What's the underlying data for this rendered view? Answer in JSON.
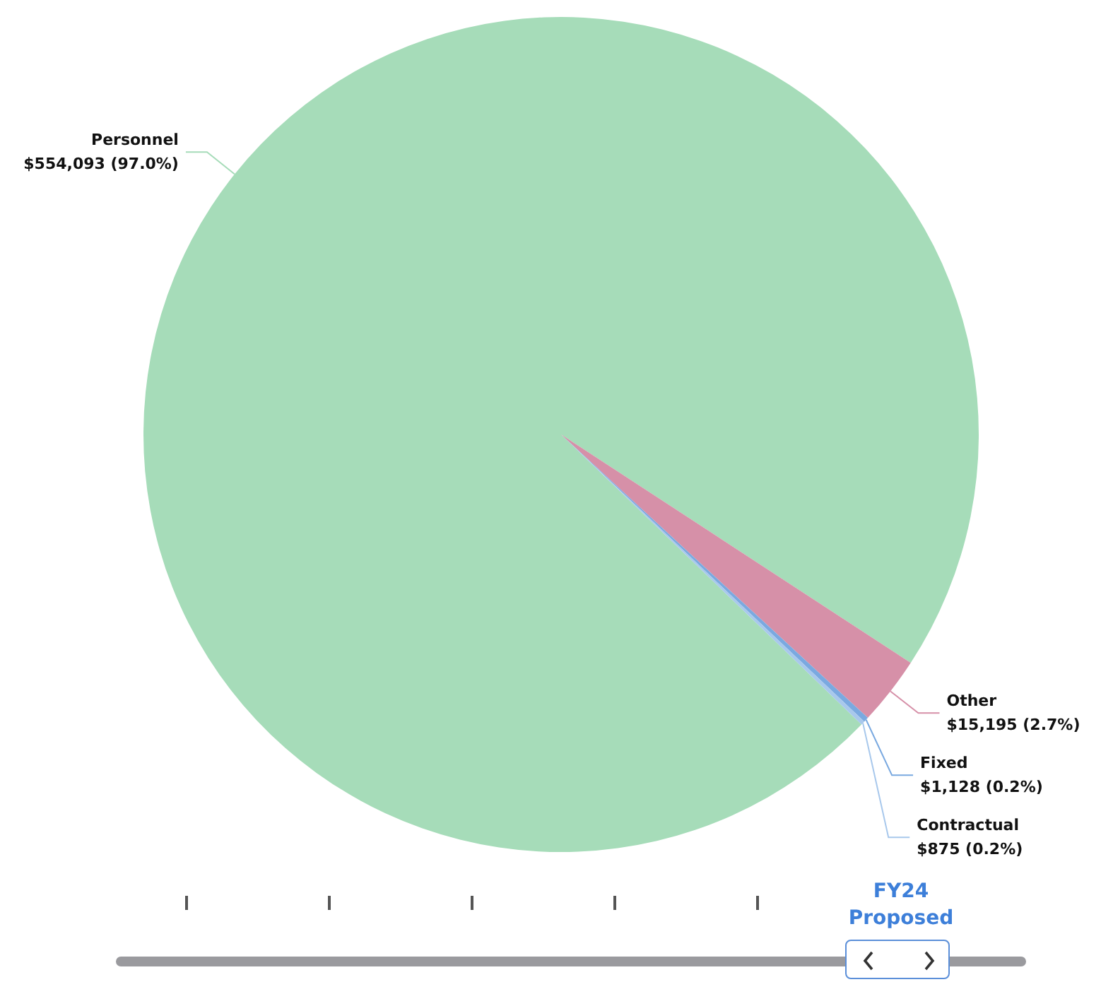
{
  "chart_data": {
    "type": "pie",
    "categories": [
      "Personnel",
      "Other",
      "Fixed",
      "Contractual"
    ],
    "values": [
      554093,
      15195,
      1128,
      875
    ],
    "colors": [
      "#a6dcb9",
      "#d690a8",
      "#7aa9e0",
      "#a8c8ec"
    ],
    "value_labels": [
      "$554,093 (97.0%)",
      "$15,195 (2.7%)",
      "$1,128 (0.2%)",
      "$875 (0.2%)"
    ],
    "annotations": [
      "FY24 Proposed"
    ],
    "legend": false
  }
}
